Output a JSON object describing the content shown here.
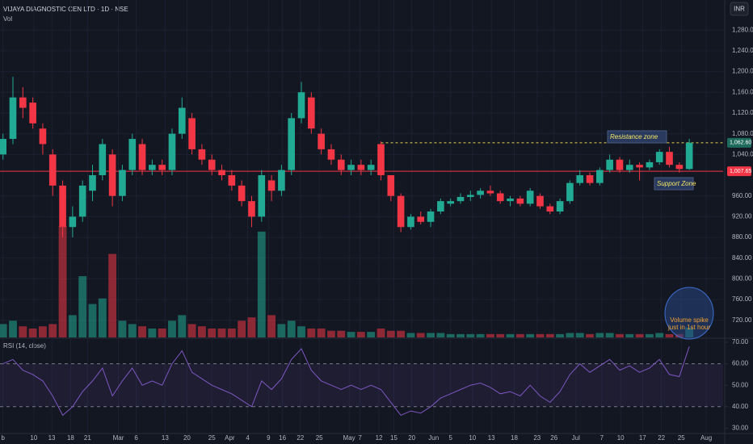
{
  "chart_data": {
    "type": "candlestick",
    "title": "VIJAYA DIAGNOSTIC CEN LTD · 1D · NSE",
    "volume_label": "Vol",
    "currency": "INR",
    "open": [
      1040,
      1070,
      1150,
      1140,
      1090,
      1040,
      980,
      900,
      920,
      970,
      1000,
      1040,
      960,
      1010,
      1060,
      1010,
      1020,
      1010,
      1080,
      1110,
      1050,
      1030,
      1010,
      1000,
      980,
      950,
      920,
      990,
      970,
      1010,
      1110,
      1150,
      1080,
      1050,
      1030,
      1010,
      1020,
      1010,
      1060,
      1000,
      960,
      900,
      920,
      910,
      930,
      945,
      950,
      958,
      962,
      970,
      965,
      950,
      955,
      945,
      960,
      940,
      930,
      950,
      985,
      1000,
      985,
      1010,
      1030,
      1010,
      1020,
      1015,
      1025,
      1045,
      1020,
      1012
    ],
    "high": [
      1080,
      1190,
      1170,
      1150,
      1100,
      1050,
      990,
      940,
      990,
      1020,
      1070,
      1050,
      1020,
      1080,
      1070,
      1030,
      1030,
      1090,
      1150,
      1120,
      1060,
      1040,
      1020,
      1010,
      990,
      960,
      1010,
      1000,
      1020,
      1120,
      1180,
      1160,
      1090,
      1060,
      1040,
      1030,
      1030,
      1030,
      1065,
      1000,
      965,
      925,
      930,
      935,
      955,
      955,
      965,
      970,
      975,
      980,
      970,
      960,
      960,
      975,
      965,
      945,
      955,
      990,
      1010,
      1005,
      1015,
      1040,
      1035,
      1030,
      1025,
      1030,
      1050,
      1055,
      1025,
      1070
    ],
    "low": [
      1030,
      1060,
      1110,
      1090,
      1040,
      960,
      880,
      880,
      910,
      950,
      990,
      940,
      950,
      1000,
      1000,
      1000,
      1000,
      1000,
      1070,
      1040,
      1020,
      1000,
      990,
      970,
      940,
      900,
      910,
      950,
      960,
      1000,
      1100,
      1080,
      1040,
      1020,
      1000,
      1000,
      1000,
      1000,
      990,
      950,
      890,
      895,
      905,
      900,
      925,
      940,
      945,
      950,
      955,
      960,
      945,
      940,
      940,
      940,
      935,
      925,
      925,
      945,
      980,
      980,
      980,
      1005,
      1005,
      1005,
      990,
      1010,
      1020,
      1015,
      1005,
      1010
    ],
    "close": [
      1070,
      1150,
      1130,
      1100,
      1060,
      980,
      900,
      920,
      980,
      1000,
      1060,
      960,
      1010,
      1070,
      1010,
      1020,
      1010,
      1080,
      1130,
      1050,
      1030,
      1010,
      1000,
      980,
      950,
      920,
      1000,
      970,
      1010,
      1110,
      1160,
      1090,
      1050,
      1030,
      1010,
      1020,
      1010,
      1020,
      1000,
      960,
      900,
      920,
      910,
      930,
      950,
      950,
      958,
      962,
      970,
      965,
      950,
      955,
      945,
      970,
      940,
      930,
      950,
      985,
      1000,
      985,
      1010,
      1030,
      1010,
      1020,
      1015,
      1025,
      1045,
      1020,
      1012,
      1062.6
    ],
    "volume": [
      12,
      15,
      10,
      8,
      10,
      12,
      100,
      20,
      55,
      30,
      35,
      75,
      15,
      12,
      10,
      8,
      8,
      15,
      20,
      12,
      10,
      8,
      8,
      8,
      15,
      18,
      95,
      20,
      12,
      15,
      10,
      8,
      8,
      6,
      6,
      5,
      5,
      5,
      8,
      6,
      6,
      4,
      4,
      4,
      4,
      3,
      3,
      3,
      3,
      3,
      3,
      3,
      3,
      3,
      3,
      3,
      3,
      4,
      4,
      3,
      4,
      4,
      3,
      3,
      3,
      3,
      4,
      3,
      3,
      9
    ],
    "up_color": "#22ab94",
    "down_color": "#f23645",
    "ylim": [
      687,
      1338
    ],
    "yticks": [
      {
        "value": 720,
        "label": "720.00"
      },
      {
        "value": 760,
        "label": "760.00"
      },
      {
        "value": 800,
        "label": "800.00"
      },
      {
        "value": 840,
        "label": "840.00"
      },
      {
        "value": 880,
        "label": "880.00"
      },
      {
        "value": 920,
        "label": "920.00"
      },
      {
        "value": 960,
        "label": "960.00"
      },
      {
        "value": 1040,
        "label": "1,040.00"
      },
      {
        "value": 1080,
        "label": "1,080.00"
      },
      {
        "value": 1120,
        "label": "1,120.00"
      },
      {
        "value": 1160,
        "label": "1,160.00"
      },
      {
        "value": 1200,
        "label": "1,200.00"
      },
      {
        "value": 1240,
        "label": "1,240.00"
      },
      {
        "value": 1280,
        "label": "1,280.00"
      }
    ],
    "xlim": [
      -0.3,
      72.4
    ],
    "xticks": [
      {
        "value": 0,
        "label": "b"
      },
      {
        "value": 3.1,
        "label": "10"
      },
      {
        "value": 4.9,
        "label": "13"
      },
      {
        "value": 6.8,
        "label": "18"
      },
      {
        "value": 8.5,
        "label": "21"
      },
      {
        "value": 11.6,
        "label": "Mar"
      },
      {
        "value": 13.4,
        "label": "6"
      },
      {
        "value": 16.3,
        "label": "13"
      },
      {
        "value": 18.5,
        "label": "20"
      },
      {
        "value": 21,
        "label": "25"
      },
      {
        "value": 22.8,
        "label": "Apr"
      },
      {
        "value": 24.6,
        "label": "4"
      },
      {
        "value": 26.7,
        "label": "9"
      },
      {
        "value": 28.1,
        "label": "16"
      },
      {
        "value": 29.9,
        "label": "22"
      },
      {
        "value": 31.8,
        "label": "25"
      },
      {
        "value": 34.8,
        "label": "May"
      },
      {
        "value": 35.9,
        "label": "7"
      },
      {
        "value": 37.8,
        "label": "12"
      },
      {
        "value": 39.3,
        "label": "15"
      },
      {
        "value": 41.1,
        "label": "20"
      },
      {
        "value": 43.3,
        "label": "Jun"
      },
      {
        "value": 45,
        "label": "5"
      },
      {
        "value": 47.2,
        "label": "10"
      },
      {
        "value": 49.1,
        "label": "13"
      },
      {
        "value": 51.4,
        "label": "18"
      },
      {
        "value": 53.7,
        "label": "23"
      },
      {
        "value": 55.4,
        "label": "26"
      },
      {
        "value": 57.6,
        "label": "Jul"
      },
      {
        "value": 60.2,
        "label": "7"
      },
      {
        "value": 62.1,
        "label": "10"
      },
      {
        "value": 64.3,
        "label": "17"
      },
      {
        "value": 66.2,
        "label": "22"
      },
      {
        "value": 68.2,
        "label": "25"
      },
      {
        "value": 70.7,
        "label": "Aug"
      }
    ],
    "price_lines": [
      {
        "value": 1062.6,
        "label": "1,062.60",
        "color": "#e8d44d",
        "tag_color": "#1e6b5e",
        "dashed": true,
        "x_start": 38
      },
      {
        "value": 1007.65,
        "label": "1,007.65",
        "color": "#f23645",
        "tag_color": "#f23645",
        "dashed": false,
        "x_start": -0.3
      }
    ],
    "annotations": {
      "resistance": "Resistance zone",
      "support": "Support Zone",
      "volume_spike": [
        "Volume spike",
        "just in 1st hour"
      ]
    },
    "rsi": {
      "title": "RSI (14, close)",
      "color": "#7e57c2",
      "values": [
        60,
        62,
        57,
        55,
        52,
        45,
        36,
        40,
        47,
        52,
        58,
        45,
        52,
        58,
        50,
        52,
        50,
        60,
        66,
        56,
        53,
        50,
        48,
        46,
        43,
        40,
        52,
        48,
        53,
        62,
        67,
        57,
        52,
        50,
        48,
        50,
        48,
        50,
        48,
        42,
        36,
        38,
        37,
        40,
        44,
        46,
        48,
        50,
        51,
        49,
        46,
        47,
        45,
        50,
        45,
        42,
        47,
        55,
        60,
        56,
        59,
        62,
        57,
        59,
        56,
        58,
        62,
        55,
        54,
        68
      ],
      "ylim": [
        27.5,
        71.5
      ],
      "yticks": [
        {
          "value": 30,
          "label": "30.00"
        },
        {
          "value": 40,
          "label": "40.00"
        },
        {
          "value": 50,
          "label": "50.00"
        },
        {
          "value": 60,
          "label": "60.00"
        },
        {
          "value": 70,
          "label": "70.00"
        }
      ],
      "band": [
        40,
        60
      ]
    }
  }
}
